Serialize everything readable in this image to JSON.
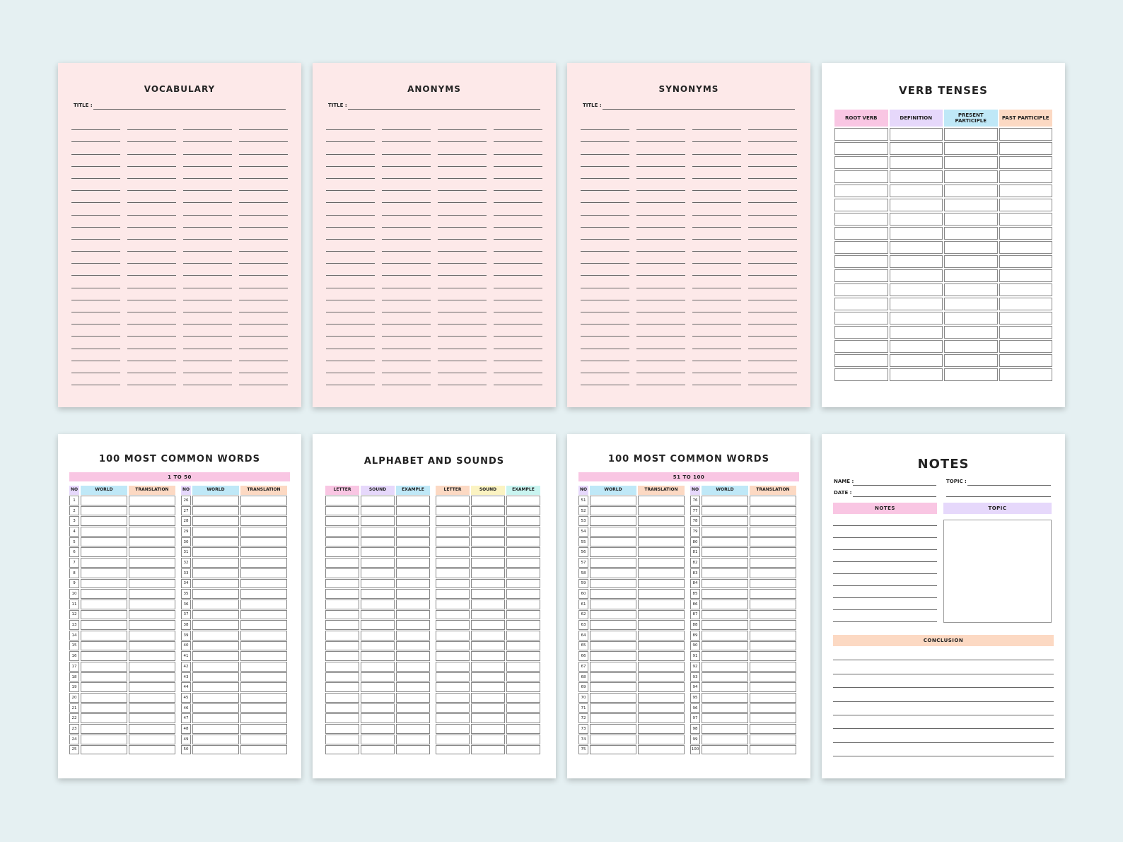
{
  "colors": {
    "background": "#e5f0f2",
    "pink_page": "#fde9e9",
    "pink": "#f9c6e3",
    "lavender": "#e6d8fb",
    "sky": "#bfe8f7",
    "peach": "#fcd9c3",
    "yellow": "#fbf3c2",
    "mint": "#c9f4f0"
  },
  "vocabulary": {
    "title": "VOCABULARY",
    "title_label": "TITLE :"
  },
  "anonyms": {
    "title": "ANONYMS",
    "title_label": "TITLE :"
  },
  "synonyms": {
    "title": "SYNONYMS",
    "title_label": "TITLE :"
  },
  "verb_tenses": {
    "title": "VERB TENSES",
    "headers": [
      "ROOT VERB",
      "DEFINITION",
      "PRESENT PARTICIPLE",
      "PAST PARTICIPLE"
    ]
  },
  "common1": {
    "title": "100 MOST COMMON WORDS",
    "band": "1 TO 50",
    "headers": [
      "NO",
      "WORLD",
      "TRANSLATION"
    ],
    "start_left": 1,
    "start_right": 26
  },
  "alphabet": {
    "title": "ALPHABET AND SOUNDS",
    "headers": [
      "LETTER",
      "SOUND",
      "EXAMPLE"
    ]
  },
  "common2": {
    "title": "100 MOST COMMON WORDS",
    "band": "51 TO 100",
    "headers": [
      "NO",
      "WORLD",
      "TRANSLATION"
    ],
    "start_left": 51,
    "start_right": 76
  },
  "notes": {
    "title": "NOTES",
    "name_label": "NAME :",
    "date_label": "DATE :",
    "topic_label": "TOPIC :",
    "notes_header": "NOTES",
    "topic_header": "TOPIC",
    "conclusion_header": "CONCLUSION"
  }
}
